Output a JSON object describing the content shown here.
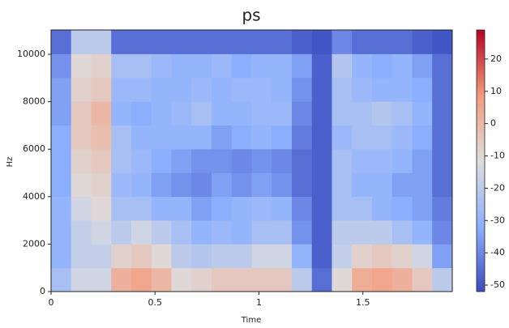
{
  "chart_data": {
    "type": "spectrogram",
    "title": "ps",
    "x_label": "Time",
    "y_label": "Hz",
    "cmap": "coolwarm",
    "xlim": [
      0,
      1.93
    ],
    "ylim": [
      0,
      11025
    ],
    "xticks": [
      0,
      0.5,
      1,
      1.5
    ],
    "yticks": [
      0,
      2000,
      4000,
      6000,
      8000,
      10000
    ],
    "clim": [
      -52,
      29
    ],
    "cticks": [
      20,
      10,
      0,
      -10,
      -20,
      -30,
      -40,
      -50
    ],
    "values": [
      [
        -25,
        -30,
        -30,
        -30,
        -32,
        -32,
        -32,
        -35,
        -35,
        -38,
        -45
      ],
      [
        -15,
        -18,
        -18,
        -15,
        -10,
        -8,
        -5,
        -5,
        -8,
        -10,
        -20
      ],
      [
        -15,
        -18,
        -15,
        -10,
        -8,
        -5,
        -2,
        0,
        -5,
        -8,
        -20
      ],
      [
        2,
        -8,
        -20,
        -25,
        -28,
        -25,
        -25,
        -30,
        -28,
        -25,
        -45
      ],
      [
        5,
        -5,
        -15,
        -25,
        -30,
        -28,
        -30,
        -32,
        -28,
        -25,
        -45
      ],
      [
        0,
        -10,
        -20,
        -30,
        -35,
        -32,
        -30,
        -30,
        -30,
        -28,
        -45
      ],
      [
        -10,
        -20,
        -25,
        -30,
        -38,
        -35,
        -30,
        -28,
        -30,
        -30,
        -45
      ],
      [
        -8,
        -22,
        -30,
        -35,
        -40,
        -38,
        -30,
        -25,
        -28,
        -30,
        -45
      ],
      [
        -5,
        -20,
        -28,
        -32,
        -35,
        -38,
        -35,
        -30,
        -30,
        -28,
        -45
      ],
      [
        -5,
        -20,
        -30,
        -30,
        -38,
        -40,
        -32,
        -30,
        -28,
        -32,
        -45
      ],
      [
        -5,
        -15,
        -25,
        -28,
        -35,
        -38,
        -30,
        -28,
        -28,
        -30,
        -45
      ],
      [
        -5,
        -15,
        -25,
        -30,
        -38,
        -40,
        -32,
        -28,
        -30,
        -30,
        -45
      ],
      [
        -20,
        -30,
        -38,
        -40,
        -45,
        -45,
        -42,
        -40,
        -38,
        -35,
        -48
      ],
      [
        -45,
        -48,
        -48,
        -48,
        -48,
        -48,
        -48,
        -48,
        -48,
        -48,
        -50
      ],
      [
        -10,
        -18,
        -20,
        -25,
        -25,
        -25,
        -28,
        -25,
        -25,
        -22,
        -40
      ],
      [
        3,
        -8,
        -20,
        -25,
        -30,
        -28,
        -25,
        -25,
        -28,
        -30,
        -45
      ],
      [
        5,
        -5,
        -20,
        -30,
        -30,
        -28,
        -25,
        -22,
        -30,
        -32,
        -45
      ],
      [
        2,
        -8,
        -25,
        -32,
        -35,
        -30,
        -28,
        -25,
        -30,
        -30,
        -45
      ],
      [
        -5,
        -15,
        -30,
        -35,
        -35,
        -35,
        -32,
        -30,
        -32,
        -35,
        -48
      ],
      [
        -20,
        -35,
        -40,
        -42,
        -45,
        -45,
        -45,
        -45,
        -45,
        -45,
        -50
      ]
    ]
  }
}
